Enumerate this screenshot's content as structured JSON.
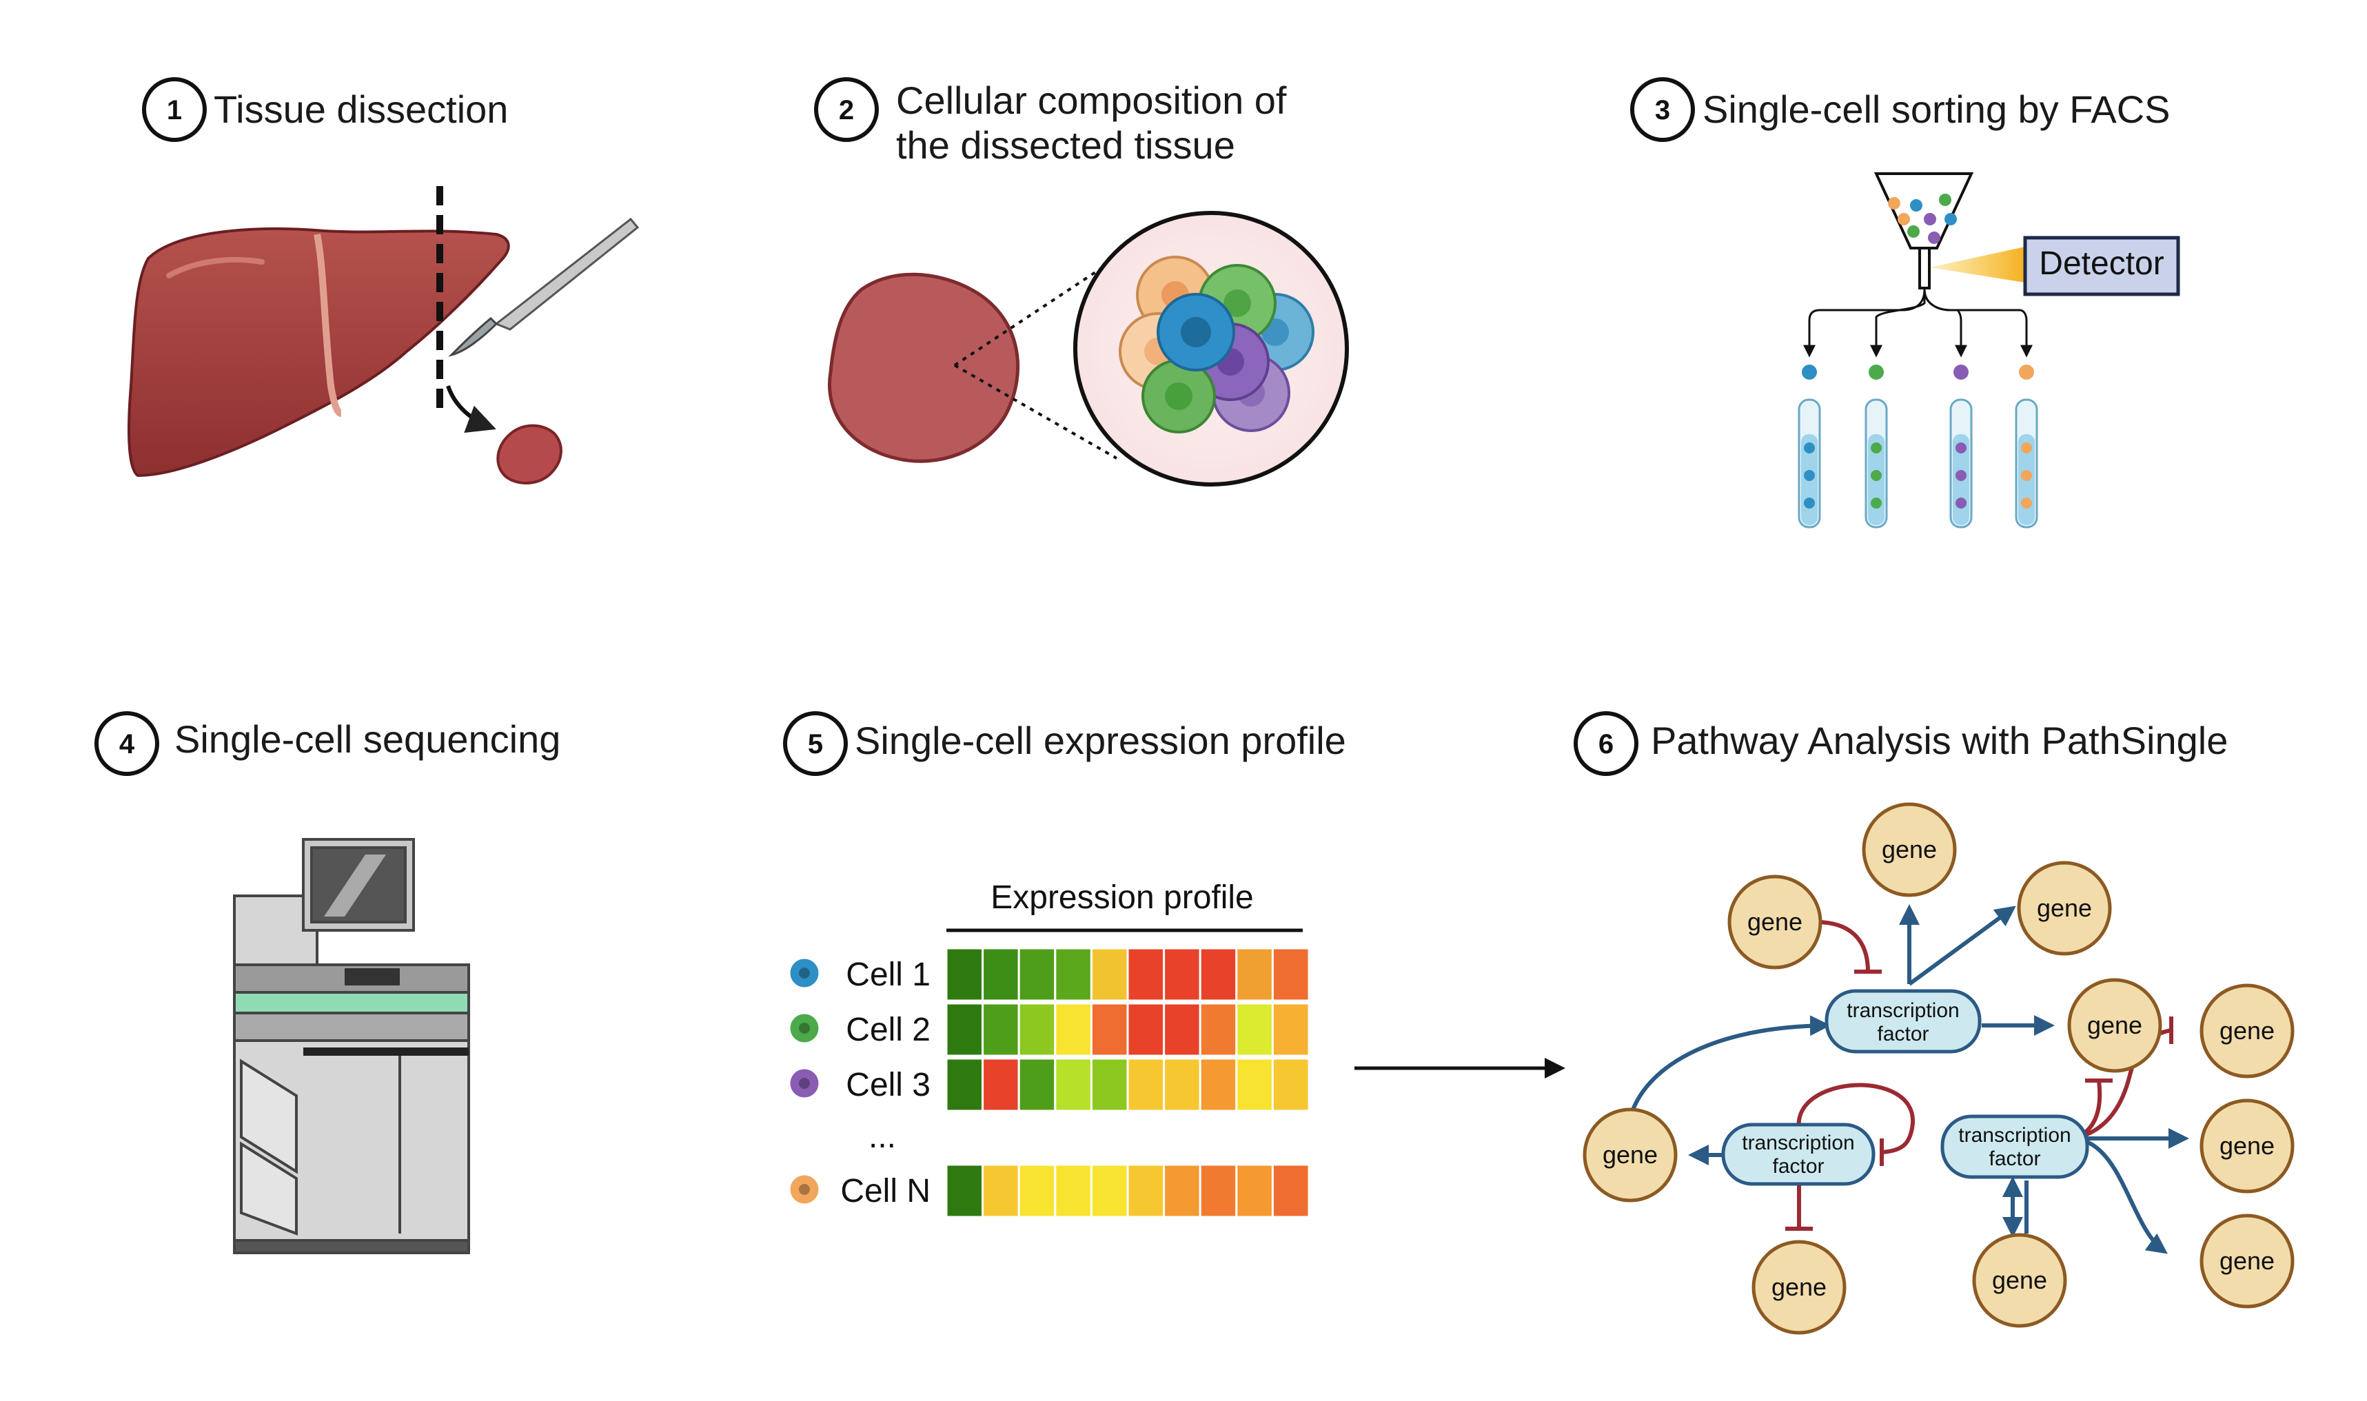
{
  "steps": [
    {
      "number": "1",
      "title_lines": [
        "Tissue dissection"
      ]
    },
    {
      "number": "2",
      "title_lines": [
        "Cellular composition of",
        "the dissected tissue"
      ]
    },
    {
      "number": "3",
      "title_lines": [
        "Single-cell sorting by FACS"
      ]
    },
    {
      "number": "4",
      "title_lines": [
        "Single-cell sequencing"
      ]
    },
    {
      "number": "5",
      "title_lines": [
        "Single-cell expression profile"
      ]
    },
    {
      "number": "6",
      "title_lines": [
        "Pathway Analysis with PathSingle"
      ]
    }
  ],
  "facs": {
    "detector_label": "Detector"
  },
  "expression": {
    "header": "Expression profile",
    "ellipsis": "...",
    "rows": [
      {
        "label": "Cell 1",
        "cell_color": "#2e8fc4",
        "colors": [
          "#2f7a10",
          "#3c8e16",
          "#4e9e1a",
          "#5ca81d",
          "#f2c330",
          "#e8422b",
          "#e8422b",
          "#e8422b",
          "#f0a030",
          "#ef6d30"
        ]
      },
      {
        "label": "Cell 2",
        "cell_color": "#4caa4a",
        "colors": [
          "#2f7a10",
          "#4e9e1a",
          "#8cc820",
          "#f7e330",
          "#ef6d30",
          "#e8422b",
          "#e8422b",
          "#f07b30",
          "#dcea30",
          "#f7b031"
        ]
      },
      {
        "label": "Cell 3",
        "cell_color": "#8a5cb4",
        "colors": [
          "#2f7a10",
          "#e8422b",
          "#4e9e1a",
          "#b6e02a",
          "#8cc820",
          "#f7c731",
          "#f7c731",
          "#f59a30",
          "#f7e330",
          "#f7c731"
        ]
      },
      {
        "label": "Cell N",
        "cell_color": "#f2a65c",
        "colors": [
          "#2f7a10",
          "#f7c731",
          "#f7e330",
          "#f7e330",
          "#f7e330",
          "#f7c731",
          "#f59a30",
          "#f07b30",
          "#f59a30",
          "#ef6d30"
        ]
      }
    ]
  },
  "network": {
    "gene_label": "gene",
    "tf_label": [
      "transcription",
      "factor"
    ]
  },
  "colors": {
    "activation": "#2b5a85",
    "inhibition": "#9b2a33",
    "gene_fill": "#f2dcab",
    "gene_stroke": "#8c5a22",
    "tf_fill": "#cde9ef",
    "tf_stroke": "#2b5a85"
  }
}
